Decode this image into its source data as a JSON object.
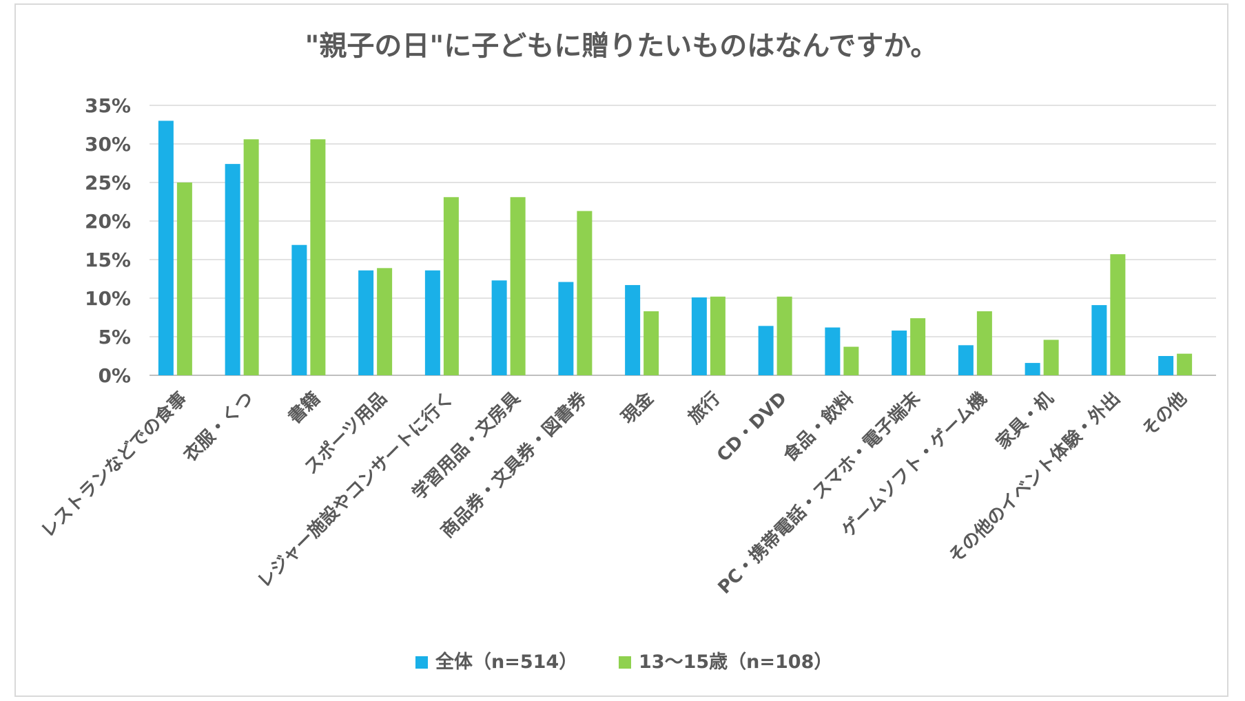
{
  "chart_data": {
    "type": "bar",
    "title": "\"親子の日\"に子どもに贈りたいものはなんですか。",
    "xlabel": "",
    "ylabel": "",
    "ylim": [
      0,
      35
    ],
    "yticks": [
      "0%",
      "5%",
      "10%",
      "15%",
      "20%",
      "25%",
      "30%",
      "35%"
    ],
    "yticks_values": [
      0,
      5,
      10,
      15,
      20,
      25,
      30,
      35
    ],
    "grid": true,
    "legend_position": "bottom",
    "categories": [
      "レストランなどでの食事",
      "衣服・くつ",
      "書籍",
      "スポーツ用品",
      "レジャー施設やコンサートに行く",
      "学習用品・文房具",
      "商品券・文具券・図書券",
      "現金",
      "旅行",
      "CD・DVD",
      "食品・飲料",
      "PC・携帯電話・スマホ・電子端末",
      "ゲームソフト・ゲーム機",
      "家具・机",
      "その他のイベント体験・外出",
      "その他"
    ],
    "series": [
      {
        "name": "全体（n=514）",
        "color": "#1ab0e8",
        "values": [
          33.0,
          27.4,
          16.9,
          13.6,
          13.6,
          12.3,
          12.1,
          11.7,
          10.1,
          6.4,
          6.2,
          5.8,
          3.9,
          1.6,
          9.1,
          2.5
        ]
      },
      {
        "name": "13～15歳（n=108）",
        "color": "#8fd14f",
        "values": [
          25.0,
          30.6,
          30.6,
          13.9,
          23.1,
          23.1,
          21.3,
          8.3,
          10.2,
          10.2,
          3.7,
          7.4,
          8.3,
          4.6,
          15.7,
          2.8
        ]
      }
    ]
  }
}
